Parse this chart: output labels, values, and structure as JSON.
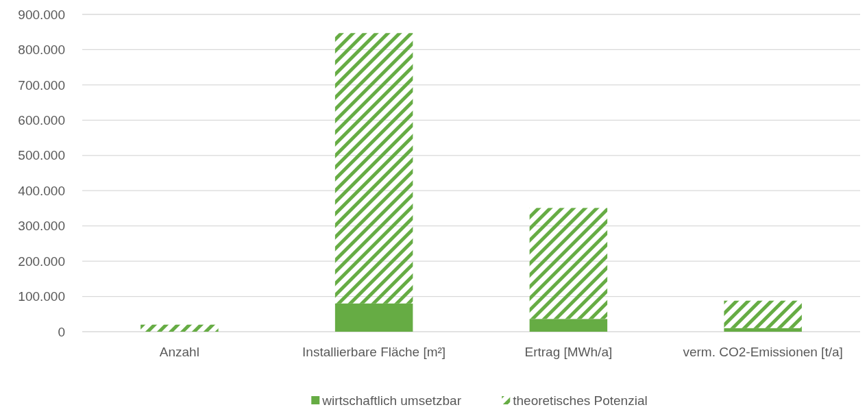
{
  "chart_data": {
    "type": "bar",
    "stacked": true,
    "categories": [
      "Anzahl",
      "Installierbare Fläche [m²]",
      "Ertrag [MWh/a]",
      "verm. CO2-Emissionen [t/a]"
    ],
    "series": [
      {
        "name": "wirtschaftlich umsetzbar",
        "color": "#66ac44",
        "values": [
          0,
          80000,
          36000,
          10000
        ]
      },
      {
        "name": "theoretisches Potenzial",
        "color": "#66ac44",
        "values": [
          20000,
          767000,
          315000,
          78000
        ]
      }
    ],
    "ylim": [
      0,
      900000
    ],
    "yticks": [
      {
        "value": 0,
        "label": "0"
      },
      {
        "value": 100000,
        "label": "100.000"
      },
      {
        "value": 200000,
        "label": "200.000"
      },
      {
        "value": 300000,
        "label": "300.000"
      },
      {
        "value": 400000,
        "label": "400.000"
      },
      {
        "value": 500000,
        "label": "500.000"
      },
      {
        "value": 600000,
        "label": "600.000"
      },
      {
        "value": 700000,
        "label": "700.000"
      },
      {
        "value": 800000,
        "label": "800.000"
      },
      {
        "value": 900000,
        "label": "900.000"
      }
    ],
    "grid": "y",
    "legend": "bottom"
  }
}
